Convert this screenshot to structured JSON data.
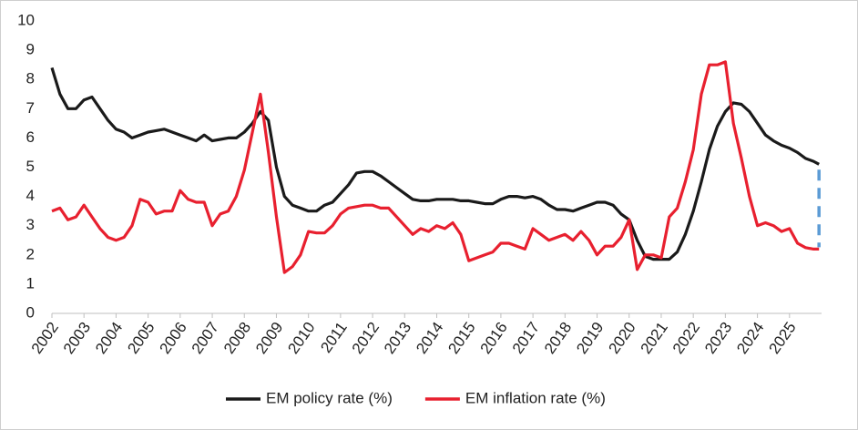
{
  "chart_data": {
    "type": "line",
    "x": [
      2002,
      2002.25,
      2002.5,
      2002.75,
      2003,
      2003.25,
      2003.5,
      2003.75,
      2004,
      2004.25,
      2004.5,
      2004.75,
      2005,
      2005.25,
      2005.5,
      2005.75,
      2006,
      2006.25,
      2006.5,
      2006.75,
      2007,
      2007.25,
      2007.5,
      2007.75,
      2008,
      2008.25,
      2008.5,
      2008.75,
      2009,
      2009.25,
      2009.5,
      2009.75,
      2010,
      2010.25,
      2010.5,
      2010.75,
      2011,
      2011.25,
      2011.5,
      2011.75,
      2012,
      2012.25,
      2012.5,
      2012.75,
      2013,
      2013.25,
      2013.5,
      2013.75,
      2014,
      2014.25,
      2014.5,
      2014.75,
      2015,
      2015.25,
      2015.5,
      2015.75,
      2016,
      2016.25,
      2016.5,
      2016.75,
      2017,
      2017.25,
      2017.5,
      2017.75,
      2018,
      2018.25,
      2018.5,
      2018.75,
      2019,
      2019.25,
      2019.5,
      2019.75,
      2020,
      2020.25,
      2020.5,
      2020.75,
      2021,
      2021.25,
      2021.5,
      2021.75,
      2022,
      2022.25,
      2022.5,
      2022.75,
      2023,
      2023.25,
      2023.5,
      2023.75,
      2024,
      2024.25,
      2024.5,
      2024.75,
      2025,
      2025.25,
      2025.5,
      2025.75,
      2025.92
    ],
    "series": [
      {
        "name": "EM policy rate (%)",
        "color": "#1a1a1a",
        "values": [
          8.4,
          7.5,
          7.0,
          7.0,
          7.3,
          7.4,
          7.0,
          6.6,
          6.3,
          6.2,
          6.0,
          6.1,
          6.2,
          6.25,
          6.3,
          6.2,
          6.1,
          6.0,
          5.9,
          6.1,
          5.9,
          5.95,
          6.0,
          6.0,
          6.2,
          6.5,
          6.9,
          6.6,
          5.0,
          4.0,
          3.7,
          3.6,
          3.5,
          3.5,
          3.7,
          3.8,
          4.1,
          4.4,
          4.8,
          4.85,
          4.85,
          4.7,
          4.5,
          4.3,
          4.1,
          3.9,
          3.85,
          3.85,
          3.9,
          3.9,
          3.9,
          3.85,
          3.85,
          3.8,
          3.75,
          3.75,
          3.9,
          4.0,
          4.0,
          3.95,
          4.0,
          3.9,
          3.7,
          3.55,
          3.55,
          3.5,
          3.6,
          3.7,
          3.8,
          3.8,
          3.7,
          3.4,
          3.2,
          2.5,
          1.95,
          1.85,
          1.85,
          1.85,
          2.1,
          2.7,
          3.5,
          4.5,
          5.6,
          6.4,
          6.9,
          7.2,
          7.15,
          6.9,
          6.5,
          6.1,
          5.9,
          5.75,
          5.65,
          5.5,
          5.3,
          5.2,
          5.1
        ]
      },
      {
        "name": "EM inflation rate (%)",
        "color": "#e8202f",
        "values": [
          3.5,
          3.6,
          3.2,
          3.3,
          3.7,
          3.3,
          2.9,
          2.6,
          2.5,
          2.6,
          3.0,
          3.9,
          3.8,
          3.4,
          3.5,
          3.5,
          4.2,
          3.9,
          3.8,
          3.8,
          3.0,
          3.4,
          3.5,
          4.0,
          4.9,
          6.2,
          7.5,
          5.5,
          3.3,
          1.4,
          1.6,
          2.0,
          2.8,
          2.75,
          2.75,
          3.0,
          3.4,
          3.6,
          3.65,
          3.7,
          3.7,
          3.6,
          3.6,
          3.3,
          3.0,
          2.7,
          2.9,
          2.8,
          3.0,
          2.9,
          3.1,
          2.7,
          1.8,
          1.9,
          2.0,
          2.1,
          2.4,
          2.4,
          2.3,
          2.2,
          2.9,
          2.7,
          2.5,
          2.6,
          2.7,
          2.5,
          2.8,
          2.5,
          2.0,
          2.3,
          2.3,
          2.6,
          3.2,
          1.5,
          2.0,
          2.0,
          1.9,
          3.3,
          3.6,
          4.5,
          5.6,
          7.5,
          8.5,
          8.5,
          8.6,
          6.5,
          5.3,
          4.0,
          3.0,
          3.1,
          3.0,
          2.8,
          2.9,
          2.4,
          2.25,
          2.2,
          2.2
        ]
      }
    ],
    "xlim": [
      2002,
      2026
    ],
    "xticks": [
      2002,
      2003,
      2004,
      2005,
      2006,
      2007,
      2008,
      2009,
      2010,
      2011,
      2012,
      2013,
      2014,
      2015,
      2016,
      2017,
      2018,
      2019,
      2020,
      2021,
      2022,
      2023,
      2024,
      2025
    ],
    "ylim": [
      0,
      10
    ],
    "yticks": [
      0,
      1,
      2,
      3,
      4,
      5,
      6,
      7,
      8,
      9,
      10
    ],
    "grid": false,
    "legend": "bottom"
  }
}
